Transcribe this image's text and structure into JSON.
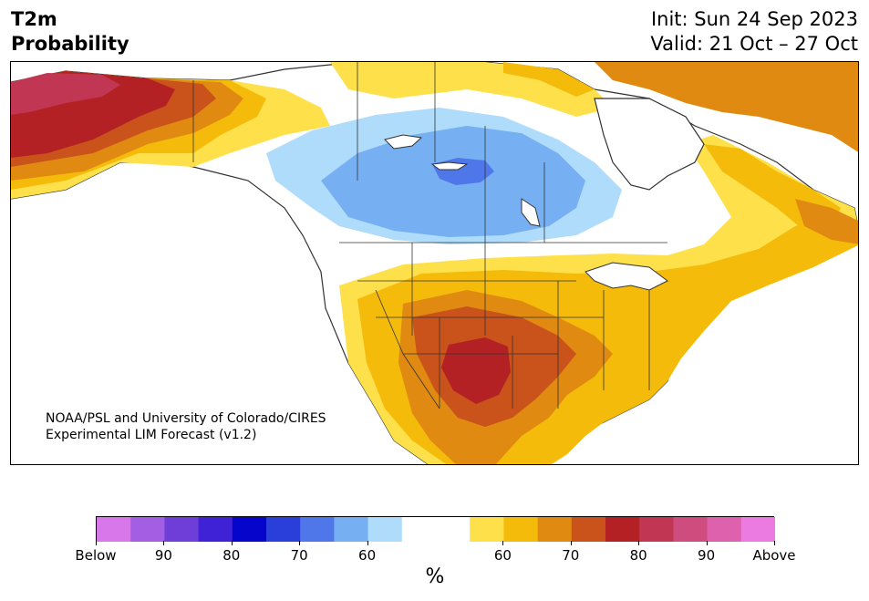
{
  "title": {
    "line1": "T2m",
    "line2": "Probability"
  },
  "init": {
    "line1": "Init: Sun 24 Sep 2023",
    "line2": "Valid: 21 Oct – 27 Oct"
  },
  "credit": {
    "line1": "NOAA/PSL and University of Colorado/CIRES",
    "line2": "Experimental LIM Forecast (v1.2)"
  },
  "colorbar": {
    "unit": "%",
    "colors": [
      "#d877ea",
      "#a35ee4",
      "#6f3dd8",
      "#3f22d6",
      "#0505cc",
      "#2a3ed9",
      "#4f77ea",
      "#77b0f2",
      "#afdcfb",
      "#ffffff",
      "#ffffff",
      "#fee14a",
      "#f4bb0b",
      "#e08a12",
      "#c9531b",
      "#b42124",
      "#c13652",
      "#cf4c7e",
      "#de61ad",
      "#eb7be0"
    ],
    "ticks": [
      {
        "label": "Below",
        "index": 0
      },
      {
        "label": "90",
        "index": 2
      },
      {
        "label": "80",
        "index": 4
      },
      {
        "label": "70",
        "index": 6
      },
      {
        "label": "60",
        "index": 8
      },
      {
        "label": "60",
        "index": 12
      },
      {
        "label": "70",
        "index": 14
      },
      {
        "label": "80",
        "index": 16
      },
      {
        "label": "90",
        "index": 18
      },
      {
        "label": "Above",
        "index": 20
      }
    ]
  },
  "map": {
    "ocean": "#ffffff",
    "coast": "#333333",
    "regions": [
      {
        "name": "alaska-above-90",
        "color": "#c13652"
      },
      {
        "name": "alaska-above-80",
        "color": "#b42124"
      },
      {
        "name": "canada-below-60",
        "color": "#afdcfb"
      },
      {
        "name": "canada-below-70",
        "color": "#77b0f2"
      },
      {
        "name": "canada-below-80",
        "color": "#4f77ea"
      },
      {
        "name": "texas-above-80",
        "color": "#b42124"
      },
      {
        "name": "southwest-above-70",
        "color": "#c9531b"
      },
      {
        "name": "south-above-65",
        "color": "#e08a12"
      },
      {
        "name": "east-above-60",
        "color": "#f4bb0b"
      },
      {
        "name": "margin-above-55",
        "color": "#fee14a"
      }
    ]
  }
}
